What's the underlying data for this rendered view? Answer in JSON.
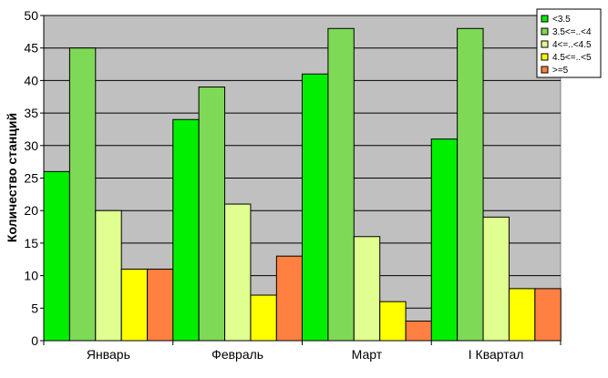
{
  "chart_data": {
    "type": "bar",
    "title": "",
    "xlabel": "",
    "ylabel": "Количество станций",
    "ylim": [
      0,
      50
    ],
    "yticks": [
      0,
      5,
      10,
      15,
      20,
      25,
      30,
      35,
      40,
      45,
      50
    ],
    "grid": true,
    "legend_position": "top-right",
    "categories": [
      "Январь",
      "Февраль",
      "Март",
      "I Квартал"
    ],
    "series": [
      {
        "name": "<3.5",
        "color": "#00ee00",
        "values": [
          26,
          34,
          41,
          31
        ]
      },
      {
        "name": "3.5<=..<4",
        "color": "#7ed957",
        "values": [
          45,
          39,
          48,
          48
        ]
      },
      {
        "name": "4<=..<4.5",
        "color": "#e0ff90",
        "values": [
          20,
          21,
          16,
          19
        ]
      },
      {
        "name": "4.5<=..<5",
        "color": "#ffff00",
        "values": [
          11,
          7,
          6,
          8
        ]
      },
      {
        "name": ">=5",
        "color": "#ff8040",
        "values": [
          11,
          13,
          3,
          8
        ]
      }
    ],
    "plot_background": "#c0c0c0"
  }
}
